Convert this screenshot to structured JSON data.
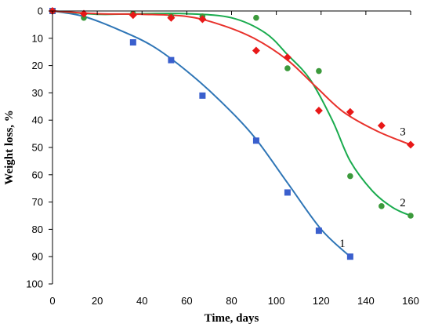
{
  "chart_data": {
    "type": "scatter",
    "xlabel": "Time, days",
    "ylabel": "Weight loss, %",
    "xlim": [
      0,
      160
    ],
    "ylim": [
      0,
      100
    ],
    "y_axis_inverted": true,
    "x_ticks": [
      0,
      20,
      40,
      60,
      80,
      100,
      120,
      140,
      160
    ],
    "y_ticks": [
      0,
      10,
      20,
      30,
      40,
      50,
      60,
      70,
      80,
      90,
      100
    ],
    "grid": false,
    "series": [
      {
        "name": "1",
        "color": "#2e75b6",
        "marker": "square",
        "marker_color": "#3a5fcd",
        "x": [
          0,
          36,
          53,
          67,
          91,
          105,
          119,
          133
        ],
        "y": [
          0,
          11.5,
          18,
          31,
          47.5,
          66.5,
          80.5,
          90
        ],
        "trend": [
          [
            0,
            0
          ],
          [
            14,
            2
          ],
          [
            30,
            7
          ],
          [
            45,
            13
          ],
          [
            60,
            22
          ],
          [
            75,
            33
          ],
          [
            90,
            46
          ],
          [
            105,
            63
          ],
          [
            120,
            80
          ],
          [
            133,
            90
          ]
        ]
      },
      {
        "name": "2",
        "color": "#1aab4e",
        "marker": "circle",
        "marker_color": "#3c9a3c",
        "x": [
          0,
          14,
          36,
          53,
          67,
          91,
          105,
          119,
          133,
          147,
          160
        ],
        "y": [
          0,
          2.5,
          1,
          2,
          2,
          2.5,
          21,
          22,
          60.5,
          71.5,
          75
        ],
        "trend": [
          [
            0,
            0
          ],
          [
            20,
            1.2
          ],
          [
            40,
            1
          ],
          [
            60,
            1
          ],
          [
            80,
            2.5
          ],
          [
            95,
            8
          ],
          [
            105,
            16
          ],
          [
            115,
            25
          ],
          [
            125,
            40
          ],
          [
            133,
            55
          ],
          [
            143,
            66
          ],
          [
            152,
            72
          ],
          [
            160,
            75
          ]
        ]
      },
      {
        "name": "3",
        "color": "#e8312b",
        "marker": "diamond",
        "marker_color": "#e81818",
        "x": [
          0,
          14,
          36,
          53,
          67,
          91,
          105,
          119,
          133,
          147,
          160
        ],
        "y": [
          0,
          1,
          1.5,
          2.5,
          3,
          14.5,
          17,
          36.5,
          37,
          42,
          49
        ],
        "trend": [
          [
            0,
            0
          ],
          [
            20,
            1
          ],
          [
            40,
            1.2
          ],
          [
            60,
            2
          ],
          [
            75,
            5
          ],
          [
            90,
            10
          ],
          [
            105,
            18
          ],
          [
            118,
            28
          ],
          [
            130,
            37
          ],
          [
            145,
            44
          ],
          [
            160,
            49
          ]
        ]
      }
    ]
  }
}
